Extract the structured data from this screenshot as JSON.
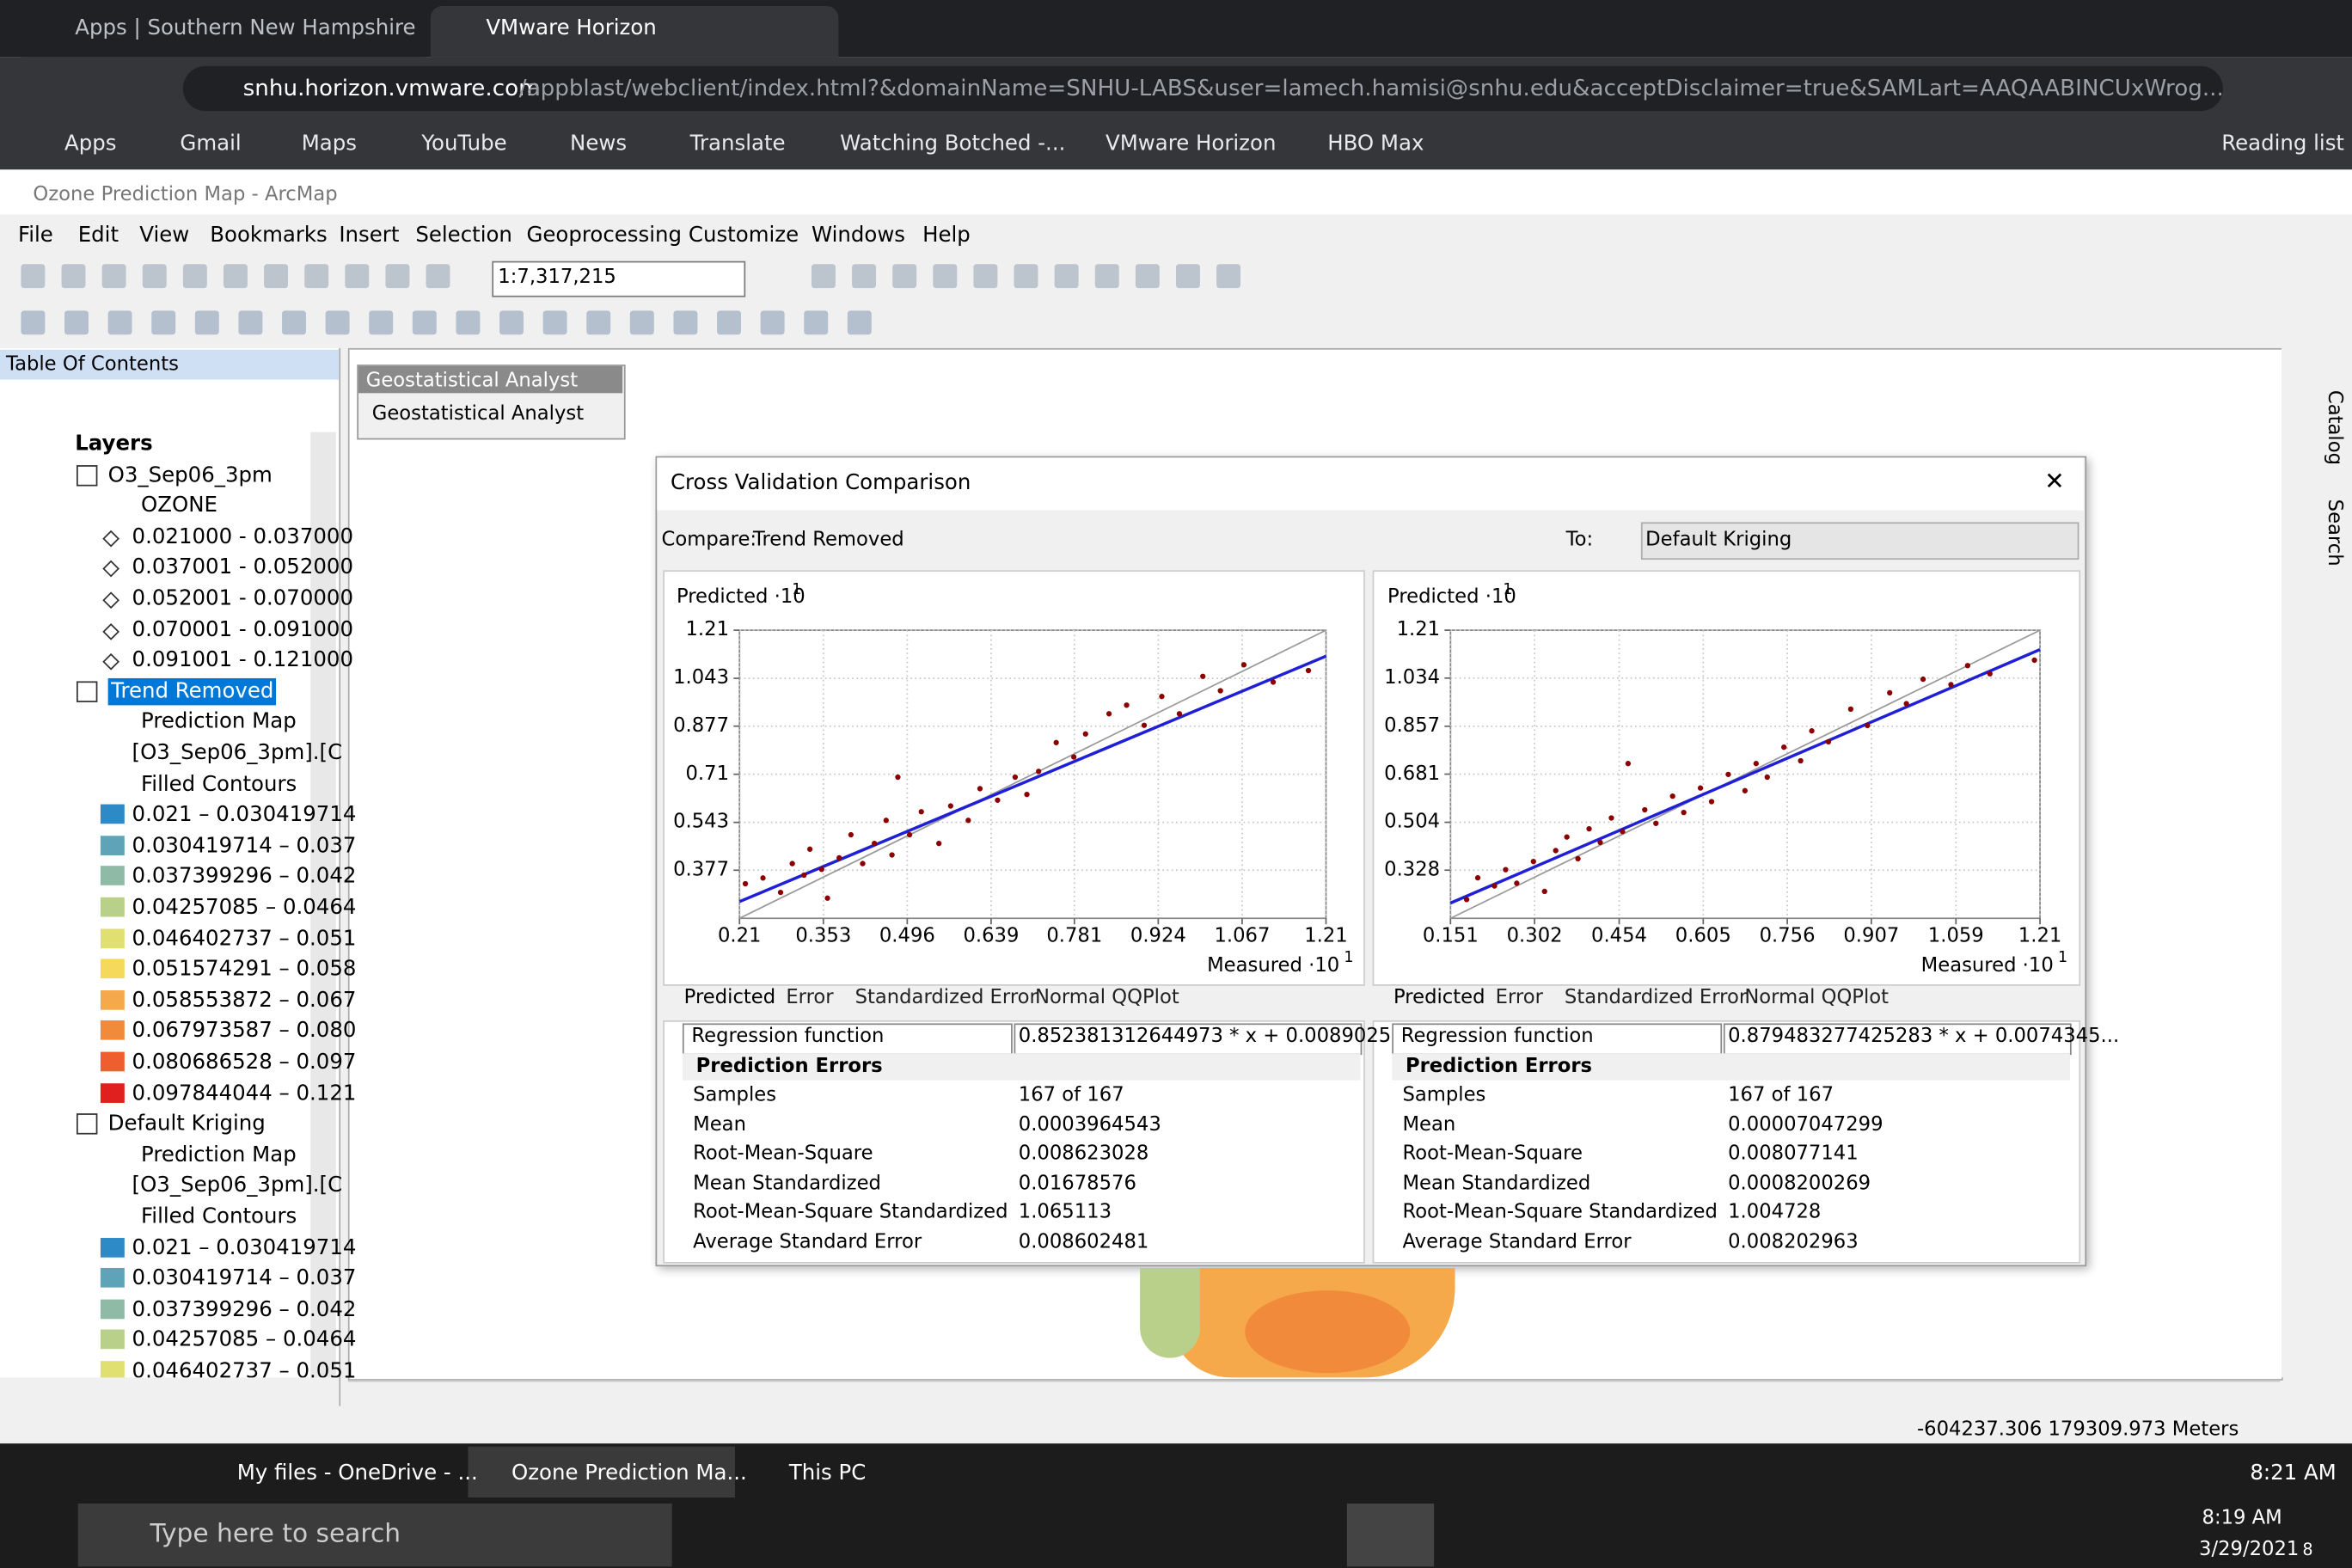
{
  "browser": {
    "tabs": [
      "Apps | Southern New Hampshire",
      "VMware Horizon"
    ],
    "url_host": "snhu.horizon.vmware.com",
    "url_path": "/appblast/webclient/index.html?&domainName=SNHU-LABS&user=lamech.hamisi@snhu.edu&acceptDisclaimer=true&SAMLart=AAQAABINCUxWrog...",
    "bookmarks": [
      "Apps",
      "Gmail",
      "Maps",
      "YouTube",
      "News",
      "Translate",
      "Watching Botched -...",
      "VMware Horizon",
      "HBO Max"
    ],
    "reading_list": "Reading list"
  },
  "app": {
    "title": "Ozone Prediction Map - ArcMap",
    "menu": [
      "File",
      "Edit",
      "View",
      "Bookmarks",
      "Insert",
      "Selection",
      "Geoprocessing",
      "Customize",
      "Windows",
      "Help"
    ],
    "scale": "1:7,317,215",
    "side_tabs": [
      "Catalog",
      "Search"
    ],
    "status": "-604237.306  179309.973 Meters"
  },
  "toc": {
    "title": "Table Of Contents",
    "root": "Layers",
    "layers": [
      {
        "name": "O3_Sep06_3pm",
        "lines": [
          "OZONE"
        ],
        "classes": [
          "0.021000 - 0.037000",
          "0.037001 - 0.052000",
          "0.052001 - 0.070000",
          "0.070001 - 0.091000",
          "0.091001 - 0.121000"
        ]
      },
      {
        "name": "Trend Removed",
        "lines": [
          "Prediction Map",
          "[O3_Sep06_3pm].[C",
          "Filled Contours"
        ],
        "classes": [
          "0.021 – 0.030419714",
          "0.030419714 – 0.037",
          "0.037399296 – 0.042",
          "0.04257085 – 0.0464",
          "0.046402737 – 0.051",
          "0.051574291 – 0.058",
          "0.058553872 – 0.067",
          "0.067973587 – 0.080",
          "0.080686528 – 0.097",
          "0.097844044 – 0.121"
        ]
      },
      {
        "name": "Default Kriging",
        "lines": [
          "Prediction Map",
          "[O3_Sep06_3pm].[C",
          "Filled Contours"
        ],
        "classes": [
          "0.021 – 0.030419714",
          "0.030419714 – 0.037",
          "0.037399296 – 0.042",
          "0.04257085 – 0.0464",
          "0.046402737 – 0.051"
        ]
      }
    ]
  },
  "analyst": {
    "title": "Geostatistical Analyst",
    "button": "Geostatistical Analyst"
  },
  "dialog": {
    "title": "Cross Validation Comparison",
    "compare_label": "Compare:",
    "compare_value": "Trend Removed",
    "to_label": "To:",
    "to_value": "Default Kriging",
    "panels": [
      {
        "tabs": [
          "Predicted",
          "Error",
          "Standardized Error",
          "Normal QQPlot"
        ],
        "regression_label": "Regression function",
        "regression_value": "0.852381312644973 * x + 0.0089025...",
        "section": "Prediction Errors",
        "rows": [
          [
            "Samples",
            "167 of 167"
          ],
          [
            "Mean",
            "0.0003964543"
          ],
          [
            "Root-Mean-Square",
            "0.008623028"
          ],
          [
            "Mean Standardized",
            "0.01678576"
          ],
          [
            "Root-Mean-Square Standardized",
            "1.065113"
          ],
          [
            "Average Standard Error",
            "0.008602481"
          ]
        ]
      },
      {
        "tabs": [
          "Predicted",
          "Error",
          "Standardized Error",
          "Normal QQPlot"
        ],
        "regression_label": "Regression function",
        "regression_value": "0.879483277425283 * x + 0.0074345...",
        "section": "Prediction Errors",
        "rows": [
          [
            "Samples",
            "167 of 167"
          ],
          [
            "Mean",
            "0.00007047299"
          ],
          [
            "Root-Mean-Square",
            "0.008077141"
          ],
          [
            "Mean Standardized",
            "0.0008200269"
          ],
          [
            "Root-Mean-Square Standardized",
            "1.004728"
          ],
          [
            "Average Standard Error",
            "0.008202963"
          ]
        ]
      }
    ]
  },
  "chart_data": [
    {
      "type": "scatter",
      "y_label": "Predicted ·10",
      "y_exp": "1",
      "x_label": "Measured ·10",
      "x_exp": "1",
      "color": "#8b0000",
      "fit_color": "#1f1fd6",
      "grid": true,
      "xlim": [
        0.21,
        1.21
      ],
      "ylim": [
        0.21,
        1.21
      ],
      "xticks": [
        0.21,
        0.353,
        0.496,
        0.639,
        0.781,
        0.924,
        1.067,
        1.21
      ],
      "yticks": [
        0.377,
        0.543,
        0.71,
        0.877,
        1.043,
        1.21
      ],
      "x": [
        0.22,
        0.25,
        0.28,
        0.3,
        0.32,
        0.33,
        0.35,
        0.36,
        0.38,
        0.4,
        0.42,
        0.44,
        0.46,
        0.47,
        0.48,
        0.5,
        0.52,
        0.55,
        0.57,
        0.6,
        0.62,
        0.65,
        0.68,
        0.7,
        0.72,
        0.75,
        0.78,
        0.8,
        0.84,
        0.87,
        0.9,
        0.93,
        0.96,
        1.0,
        1.03,
        1.07,
        1.12,
        1.18
      ],
      "y": [
        0.33,
        0.35,
        0.3,
        0.4,
        0.36,
        0.45,
        0.38,
        0.28,
        0.42,
        0.5,
        0.4,
        0.47,
        0.55,
        0.43,
        0.7,
        0.5,
        0.58,
        0.47,
        0.6,
        0.55,
        0.66,
        0.62,
        0.7,
        0.64,
        0.72,
        0.82,
        0.77,
        0.85,
        0.92,
        0.95,
        0.88,
        0.98,
        0.92,
        1.05,
        1.0,
        1.09,
        1.03,
        1.07
      ],
      "fit_x": [
        0.21,
        1.21
      ],
      "fit_y": [
        0.268,
        1.12
      ]
    },
    {
      "type": "scatter",
      "y_label": "Predicted ·10",
      "y_exp": "1",
      "x_label": "Measured ·10",
      "x_exp": "1",
      "color": "#8b0000",
      "fit_color": "#1f1fd6",
      "grid": true,
      "xlim": [
        0.151,
        1.21
      ],
      "ylim": [
        0.151,
        1.21
      ],
      "xticks": [
        0.151,
        0.302,
        0.454,
        0.605,
        0.756,
        0.907,
        1.059,
        1.21
      ],
      "yticks": [
        0.328,
        0.504,
        0.681,
        0.857,
        1.034,
        1.21
      ],
      "x": [
        0.18,
        0.2,
        0.23,
        0.25,
        0.27,
        0.3,
        0.32,
        0.34,
        0.36,
        0.38,
        0.4,
        0.42,
        0.44,
        0.46,
        0.47,
        0.5,
        0.52,
        0.55,
        0.57,
        0.6,
        0.62,
        0.65,
        0.68,
        0.7,
        0.72,
        0.75,
        0.78,
        0.8,
        0.83,
        0.87,
        0.9,
        0.94,
        0.97,
        1.0,
        1.05,
        1.08,
        1.12,
        1.2
      ],
      "y": [
        0.22,
        0.3,
        0.27,
        0.33,
        0.28,
        0.36,
        0.25,
        0.4,
        0.45,
        0.37,
        0.48,
        0.43,
        0.52,
        0.47,
        0.72,
        0.55,
        0.5,
        0.6,
        0.54,
        0.63,
        0.58,
        0.68,
        0.62,
        0.72,
        0.67,
        0.78,
        0.73,
        0.84,
        0.8,
        0.92,
        0.86,
        0.98,
        0.94,
        1.03,
        1.01,
        1.08,
        1.05,
        1.1
      ],
      "fit_x": [
        0.151,
        1.21
      ],
      "fit_y": [
        0.207,
        1.139
      ]
    }
  ],
  "taskbar": {
    "apps": [
      "My files - OneDrive - ...",
      "Ozone Prediction Ma...",
      "This PC"
    ],
    "search": "Type here to search",
    "time_top": "8:21 AM",
    "time": "8:19 AM",
    "date": "3/29/2021",
    "badge": "8"
  }
}
